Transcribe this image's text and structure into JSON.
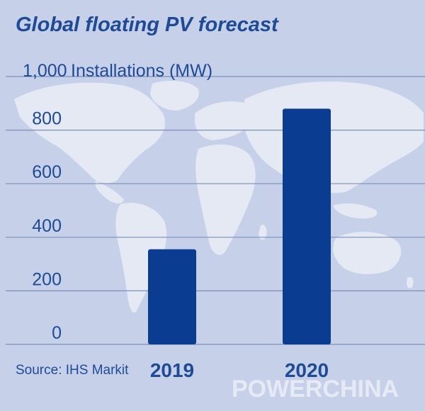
{
  "colors": {
    "background": "#c6d1e9",
    "bar": "#0a3d91",
    "text": "#1f4a96",
    "gridline": "#7d8fb8",
    "map_land": "#e4e9f4"
  },
  "watermark": "POWERCHINA",
  "chart_data": {
    "type": "bar",
    "title": "Global floating PV forecast",
    "ylabel": "Installations (MW)",
    "ylim": [
      0,
      1000
    ],
    "yticks": [
      0,
      200,
      400,
      600,
      800,
      1000
    ],
    "ytick_labels": [
      "0",
      "200",
      "400",
      "600",
      "800",
      "1,000"
    ],
    "categories": [
      "2019",
      "2020"
    ],
    "values": [
      355,
      880
    ],
    "grid": true,
    "source": "Source: IHS Markit"
  }
}
